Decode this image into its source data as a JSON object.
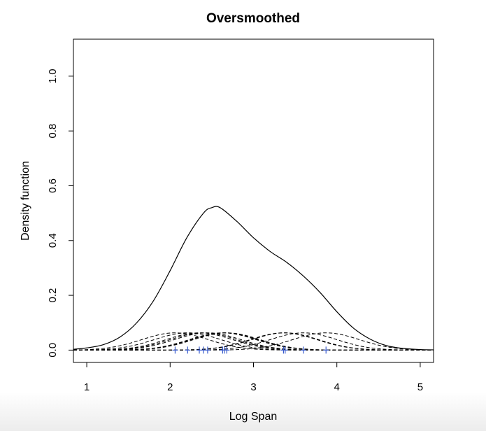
{
  "chart_data": {
    "type": "line",
    "title": "Oversmoothed",
    "xlabel": "Log Span",
    "ylabel": "Density function",
    "xlim": [
      0.84,
      5.16
    ],
    "ylim": [
      -0.045,
      1.135
    ],
    "x_ticks": [
      1,
      2,
      3,
      4,
      5
    ],
    "y_ticks": [
      0.0,
      0.2,
      0.4,
      0.6,
      0.8,
      1.0
    ],
    "x_tick_labels": [
      "1",
      "2",
      "3",
      "4",
      "5"
    ],
    "y_tick_labels": [
      "0.0",
      "0.2",
      "0.4",
      "0.6",
      "0.8",
      "1.0"
    ],
    "bandwidth": 0.4,
    "kernel_peak": 0.063,
    "observations": [
      2.06,
      2.21,
      2.35,
      2.4,
      2.45,
      2.63,
      2.65,
      2.68,
      3.36,
      3.38,
      3.6,
      3.87
    ],
    "series": [
      {
        "name": "density estimate",
        "style": "solid",
        "x": [
          0.84,
          1.0,
          1.2,
          1.4,
          1.6,
          1.8,
          2.0,
          2.2,
          2.4,
          2.5,
          2.6,
          2.8,
          3.0,
          3.2,
          3.4,
          3.6,
          3.8,
          4.0,
          4.2,
          4.4,
          4.6,
          4.8,
          5.0,
          5.16
        ],
        "y": [
          0.003,
          0.008,
          0.02,
          0.048,
          0.1,
          0.18,
          0.29,
          0.41,
          0.5,
          0.52,
          0.52,
          0.47,
          0.41,
          0.36,
          0.32,
          0.27,
          0.21,
          0.14,
          0.08,
          0.04,
          0.016,
          0.006,
          0.002,
          0.001
        ]
      },
      {
        "name": "individual kernels",
        "style": "dashed",
        "note": "one scaled Gaussian kernel per observation"
      }
    ],
    "rug_color": "#3a5ccc"
  }
}
